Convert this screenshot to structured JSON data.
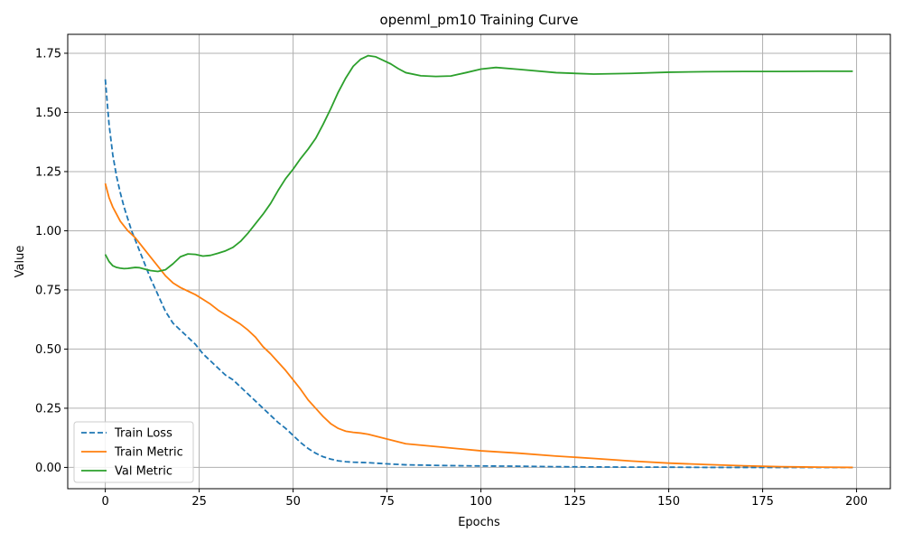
{
  "chart_data": {
    "type": "line",
    "title": "openml_pm10 Training Curve",
    "xlabel": "Epochs",
    "ylabel": "Value",
    "xlim": [
      -10,
      209
    ],
    "ylim": [
      -0.09,
      1.83
    ],
    "xticks": [
      0,
      25,
      50,
      75,
      100,
      125,
      150,
      175,
      200
    ],
    "yticks": [
      0.0,
      0.25,
      0.5,
      0.75,
      1.0,
      1.25,
      1.5,
      1.75
    ],
    "grid": true,
    "legend_position": "bottom-left",
    "series": [
      {
        "name": "Train Loss",
        "color": "#1f77b4",
        "style": "dashed",
        "x": [
          0,
          1,
          2,
          3,
          4,
          5,
          6,
          7,
          8,
          9,
          10,
          12,
          14,
          16,
          18,
          20,
          22,
          24,
          26,
          28,
          30,
          32,
          34,
          36,
          38,
          40,
          42,
          44,
          46,
          48,
          50,
          52,
          54,
          56,
          58,
          60,
          62,
          64,
          66,
          68,
          70,
          75,
          80,
          90,
          100,
          110,
          120,
          130,
          140,
          150,
          160,
          170,
          180,
          190,
          199
        ],
        "values": [
          1.64,
          1.45,
          1.32,
          1.23,
          1.16,
          1.1,
          1.05,
          1.0,
          0.96,
          0.92,
          0.88,
          0.8,
          0.73,
          0.66,
          0.61,
          0.58,
          0.55,
          0.52,
          0.48,
          0.45,
          0.42,
          0.39,
          0.37,
          0.34,
          0.31,
          0.28,
          0.25,
          0.22,
          0.19,
          0.165,
          0.135,
          0.105,
          0.08,
          0.06,
          0.045,
          0.035,
          0.028,
          0.024,
          0.022,
          0.021,
          0.02,
          0.015,
          0.011,
          0.008,
          0.006,
          0.005,
          0.003,
          0.002,
          0.001,
          0.001,
          0.0,
          0.0,
          0.0,
          0.0,
          0.0
        ]
      },
      {
        "name": "Train Metric",
        "color": "#ff7f0e",
        "style": "solid",
        "x": [
          0,
          1,
          2,
          3,
          4,
          5,
          6,
          7,
          8,
          9,
          10,
          12,
          14,
          16,
          18,
          20,
          22,
          24,
          26,
          28,
          30,
          32,
          34,
          36,
          38,
          40,
          42,
          44,
          46,
          48,
          50,
          52,
          54,
          56,
          58,
          60,
          62,
          64,
          66,
          68,
          70,
          75,
          80,
          90,
          100,
          110,
          120,
          130,
          140,
          150,
          160,
          170,
          180,
          190,
          199
        ],
        "values": [
          1.2,
          1.14,
          1.1,
          1.07,
          1.04,
          1.02,
          1.0,
          0.985,
          0.97,
          0.95,
          0.93,
          0.89,
          0.85,
          0.81,
          0.78,
          0.76,
          0.745,
          0.73,
          0.71,
          0.69,
          0.665,
          0.645,
          0.625,
          0.605,
          0.58,
          0.55,
          0.51,
          0.48,
          0.445,
          0.41,
          0.37,
          0.33,
          0.285,
          0.25,
          0.215,
          0.185,
          0.165,
          0.153,
          0.148,
          0.145,
          0.14,
          0.12,
          0.1,
          0.085,
          0.07,
          0.06,
          0.048,
          0.038,
          0.027,
          0.018,
          0.012,
          0.007,
          0.003,
          0.001,
          0.0
        ]
      },
      {
        "name": "Val Metric",
        "color": "#2ca02c",
        "style": "solid",
        "x": [
          0,
          1,
          2,
          3,
          4,
          5,
          6,
          7,
          8,
          9,
          10,
          12,
          14,
          16,
          18,
          20,
          22,
          24,
          26,
          28,
          30,
          32,
          34,
          36,
          38,
          40,
          42,
          44,
          46,
          48,
          50,
          52,
          54,
          56,
          58,
          60,
          62,
          64,
          66,
          68,
          70,
          72,
          74,
          76,
          78,
          80,
          84,
          88,
          92,
          96,
          100,
          104,
          110,
          120,
          130,
          140,
          150,
          160,
          170,
          180,
          190,
          199
        ],
        "values": [
          0.9,
          0.87,
          0.852,
          0.845,
          0.842,
          0.84,
          0.841,
          0.843,
          0.845,
          0.844,
          0.84,
          0.832,
          0.828,
          0.835,
          0.86,
          0.89,
          0.902,
          0.9,
          0.893,
          0.896,
          0.905,
          0.915,
          0.93,
          0.955,
          0.99,
          1.03,
          1.07,
          1.115,
          1.17,
          1.22,
          1.26,
          1.305,
          1.345,
          1.39,
          1.45,
          1.515,
          1.585,
          1.645,
          1.695,
          1.725,
          1.74,
          1.735,
          1.72,
          1.705,
          1.685,
          1.668,
          1.655,
          1.652,
          1.654,
          1.668,
          1.683,
          1.69,
          1.682,
          1.668,
          1.662,
          1.665,
          1.67,
          1.672,
          1.673,
          1.673,
          1.674,
          1.674
        ]
      }
    ]
  }
}
